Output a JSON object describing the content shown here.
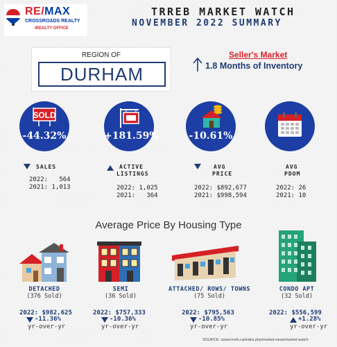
{
  "brand": {
    "logo_text_re": "RE/",
    "logo_text_max": "MAX",
    "logo_line2": "CROSSROADS REALTY",
    "logo_line3": "iREALTY OFFICE"
  },
  "header": {
    "title": "TRREB MARKET WATCH",
    "subtitle": "NOVEMBER 2022 SUMMARY"
  },
  "region": {
    "label": "REGION OF",
    "name": "DURHAM"
  },
  "market": {
    "status": "Seller's Market",
    "inventory": "1.8 Months of Inventory"
  },
  "indicators": [
    {
      "icon": "sold-sign-icon",
      "change": "-44.32%",
      "direction": "down",
      "label": "SALES",
      "label2": "",
      "line1": "2022:   564",
      "line2": "2021: 1,013"
    },
    {
      "icon": "for-sale-sign-icon",
      "change": "+181.59%",
      "direction": "up",
      "label": "ACTIVE",
      "label2": "LISTINGS",
      "line1": "2022: 1,025",
      "line2": "2021:   364"
    },
    {
      "icon": "house-coins-icon",
      "change": "-10.61%",
      "direction": "down",
      "label": "AVG",
      "label2": "PRICE",
      "line1": "2022: $892,677",
      "line2": "2021: $998,594"
    },
    {
      "icon": "calendar-icon",
      "change": "",
      "direction": "none",
      "label": "AVG",
      "label2": "PDOM",
      "line1": "2022: 26",
      "line2": "2021: 10"
    }
  ],
  "section_title": "Average Price By Housing Type",
  "housing": [
    {
      "icon": "detached-house-icon",
      "name": "DETACHED",
      "sold": "(376 Sold)",
      "price": "2022: $982,625",
      "change": "-11.36%",
      "direction": "down",
      "yoy": "yr-over-yr"
    },
    {
      "icon": "semi-house-icon",
      "name": "SEMI",
      "sold": "(36 Sold)",
      "price": "2022: $757,333",
      "change": "-10.36%",
      "direction": "down",
      "yoy": "yr-over-yr"
    },
    {
      "icon": "townhouse-icon",
      "name": "ATTACHED/ ROWS/ TOWNS",
      "sold": "(75 Sold)",
      "price": "2022: $795,563",
      "change": "-10.85%",
      "direction": "down",
      "yoy": "yr-over-yr"
    },
    {
      "icon": "condo-tower-icon",
      "name": "CONDO APT",
      "sold": "(32 Sold)",
      "price": "2022: $556,599",
      "change": "+1.28%",
      "direction": "up",
      "yoy": "yr-over-yr"
    }
  ],
  "source": "SOURCE:  /www.trreb.ca/index.php/market-news/market-watch",
  "colors": {
    "navy": "#1f3b73",
    "circle_blue": "#1c3ea5",
    "red": "#d62027"
  }
}
